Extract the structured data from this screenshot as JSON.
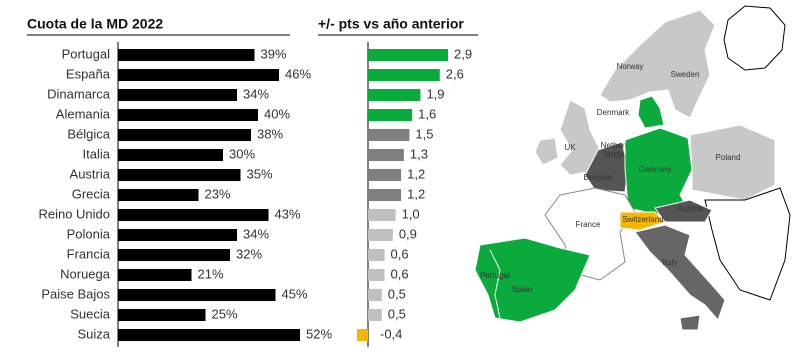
{
  "chart_data": [
    {
      "type": "bar",
      "orientation": "horizontal",
      "title": "Cuota de la MD 2022",
      "categories": [
        "Portugal",
        "España",
        "Dinamarca",
        "Alemania",
        "Bélgica",
        "Italia",
        "Austria",
        "Grecia",
        "Reino Unido",
        "Polonia",
        "Francia",
        "Noruega",
        "Paise Bajos",
        "Suecia",
        "Suiza"
      ],
      "values": [
        39,
        46,
        34,
        40,
        38,
        30,
        35,
        23,
        43,
        34,
        32,
        21,
        45,
        25,
        52
      ],
      "value_labels": [
        "39%",
        "46%",
        "34%",
        "40%",
        "38%",
        "30%",
        "35%",
        "23%",
        "43%",
        "34%",
        "32%",
        "21%",
        "45%",
        "25%",
        "52%"
      ],
      "color": "#000000"
    },
    {
      "type": "bar",
      "orientation": "horizontal",
      "title": "+/- pts vs año anterior",
      "values": [
        2.9,
        2.6,
        1.9,
        1.6,
        1.5,
        1.3,
        1.2,
        1.2,
        1.0,
        0.9,
        0.6,
        0.6,
        0.5,
        0.5,
        -0.4
      ],
      "value_labels": [
        "2,9",
        "2,6",
        "1,9",
        "1,6",
        "1,5",
        "1,3",
        "1,2",
        "1,2",
        "1,0",
        "0,9",
        "0,6",
        "0,6",
        "0,5",
        "0,5",
        "-0,4"
      ],
      "colors": [
        "#0aab3c",
        "#0aab3c",
        "#0aab3c",
        "#0aab3c",
        "#7f7f7f",
        "#7f7f7f",
        "#7f7f7f",
        "#7f7f7f",
        "#bfbfbf",
        "#bfbfbf",
        "#bfbfbf",
        "#bfbfbf",
        "#bfbfbf",
        "#bfbfbf",
        "#f5b800"
      ]
    }
  ],
  "map": {
    "labels": [
      "Norway",
      "Sweden",
      "Denmark",
      "UK",
      "Nether-",
      "lands",
      "Germany",
      "Poland",
      "Belgium",
      "France",
      "Switzerland",
      "Austria",
      "Italy",
      "Portugal",
      "Spain"
    ]
  }
}
